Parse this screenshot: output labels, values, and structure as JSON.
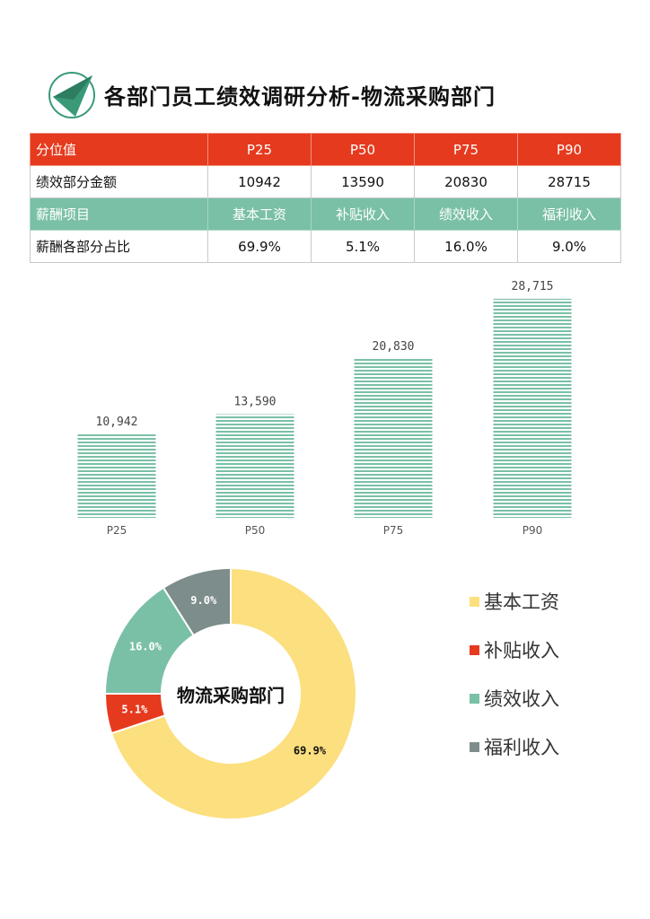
{
  "title": "各部门员工绩效调研分析-物流采购部门",
  "table": {
    "rows": [
      {
        "label": "分位值",
        "cells": [
          "P25",
          "P50",
          "P75",
          "P90"
        ],
        "style": "red"
      },
      {
        "label": "绩效部分金额",
        "cells": [
          "10942",
          "13590",
          "20830",
          "28715"
        ],
        "style": "plain"
      },
      {
        "label": "薪酬项目",
        "cells": [
          "基本工资",
          "补贴收入",
          "绩效收入",
          "福利收入"
        ],
        "style": "green"
      },
      {
        "label": "薪酬各部分占比",
        "cells": [
          "69.9%",
          "5.1%",
          "16.0%",
          "9.0%"
        ],
        "style": "plain"
      }
    ]
  },
  "colors": {
    "red": "#e63a1e",
    "green": "#7ac0a6",
    "yellow": "#fcdf7e",
    "gray": "#7d8d8b",
    "logo": "#3a9a78"
  },
  "chart_data": [
    {
      "type": "bar",
      "categories": [
        "P25",
        "P50",
        "P75",
        "P90"
      ],
      "values": [
        10942,
        13590,
        20830,
        28715
      ],
      "data_labels": [
        "10,942",
        "13,590",
        "20,830",
        "28,715"
      ],
      "ylim": [
        0,
        30000
      ],
      "grid": false,
      "bar_fill": "horizontal-stripes",
      "color": "#7ac0a6"
    },
    {
      "type": "pie",
      "donut": true,
      "center_label": "物流采购部门",
      "categories": [
        "基本工资",
        "补贴收入",
        "绩效收入",
        "福利收入"
      ],
      "values": [
        69.9,
        5.1,
        16.0,
        9.0
      ],
      "data_labels": [
        "69.9%",
        "5.1%",
        "16.0%",
        "9.0%"
      ],
      "colors": [
        "#fcdf7e",
        "#e63a1e",
        "#7ac0a6",
        "#7d8d8b"
      ],
      "legend": "right"
    }
  ]
}
